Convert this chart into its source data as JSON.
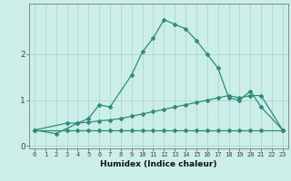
{
  "xlabel": "Humidex (Indice chaleur)",
  "line1_x": [
    0,
    2,
    4,
    5,
    6,
    7,
    9,
    10,
    11,
    12,
    13,
    14,
    15,
    16,
    17,
    18,
    19,
    20,
    21,
    23
  ],
  "line1_y": [
    0.35,
    0.27,
    0.5,
    0.6,
    0.9,
    0.85,
    1.55,
    2.05,
    2.35,
    2.75,
    2.65,
    2.55,
    2.3,
    2.0,
    1.7,
    1.05,
    1.0,
    1.2,
    0.85,
    0.35
  ],
  "line2_x": [
    0,
    3,
    4,
    5,
    6,
    7,
    8,
    9,
    10,
    11,
    12,
    13,
    14,
    15,
    16,
    17,
    18,
    19,
    20,
    21,
    23
  ],
  "line2_y": [
    0.35,
    0.5,
    0.5,
    0.52,
    0.55,
    0.57,
    0.6,
    0.65,
    0.7,
    0.75,
    0.8,
    0.85,
    0.9,
    0.95,
    1.0,
    1.05,
    1.1,
    1.05,
    1.1,
    1.1,
    0.35
  ],
  "line3_x": [
    0,
    3,
    4,
    5,
    6,
    7,
    8,
    9,
    10,
    11,
    12,
    13,
    14,
    15,
    16,
    17,
    18,
    19,
    20,
    21,
    23
  ],
  "line3_y": [
    0.35,
    0.35,
    0.35,
    0.35,
    0.35,
    0.35,
    0.35,
    0.35,
    0.35,
    0.35,
    0.35,
    0.35,
    0.35,
    0.35,
    0.35,
    0.35,
    0.35,
    0.35,
    0.35,
    0.35,
    0.35
  ],
  "line_color": "#2e8b7a",
  "bg_color": "#cceee8",
  "grid_color": "#aad8d0",
  "ylim": [
    -0.05,
    3.1
  ],
  "yticks": [
    0,
    1,
    2
  ],
  "xlim": [
    -0.5,
    23.5
  ],
  "xticks": [
    0,
    1,
    2,
    3,
    4,
    5,
    6,
    7,
    8,
    9,
    10,
    11,
    12,
    13,
    14,
    15,
    16,
    17,
    18,
    19,
    20,
    21,
    22,
    23
  ]
}
